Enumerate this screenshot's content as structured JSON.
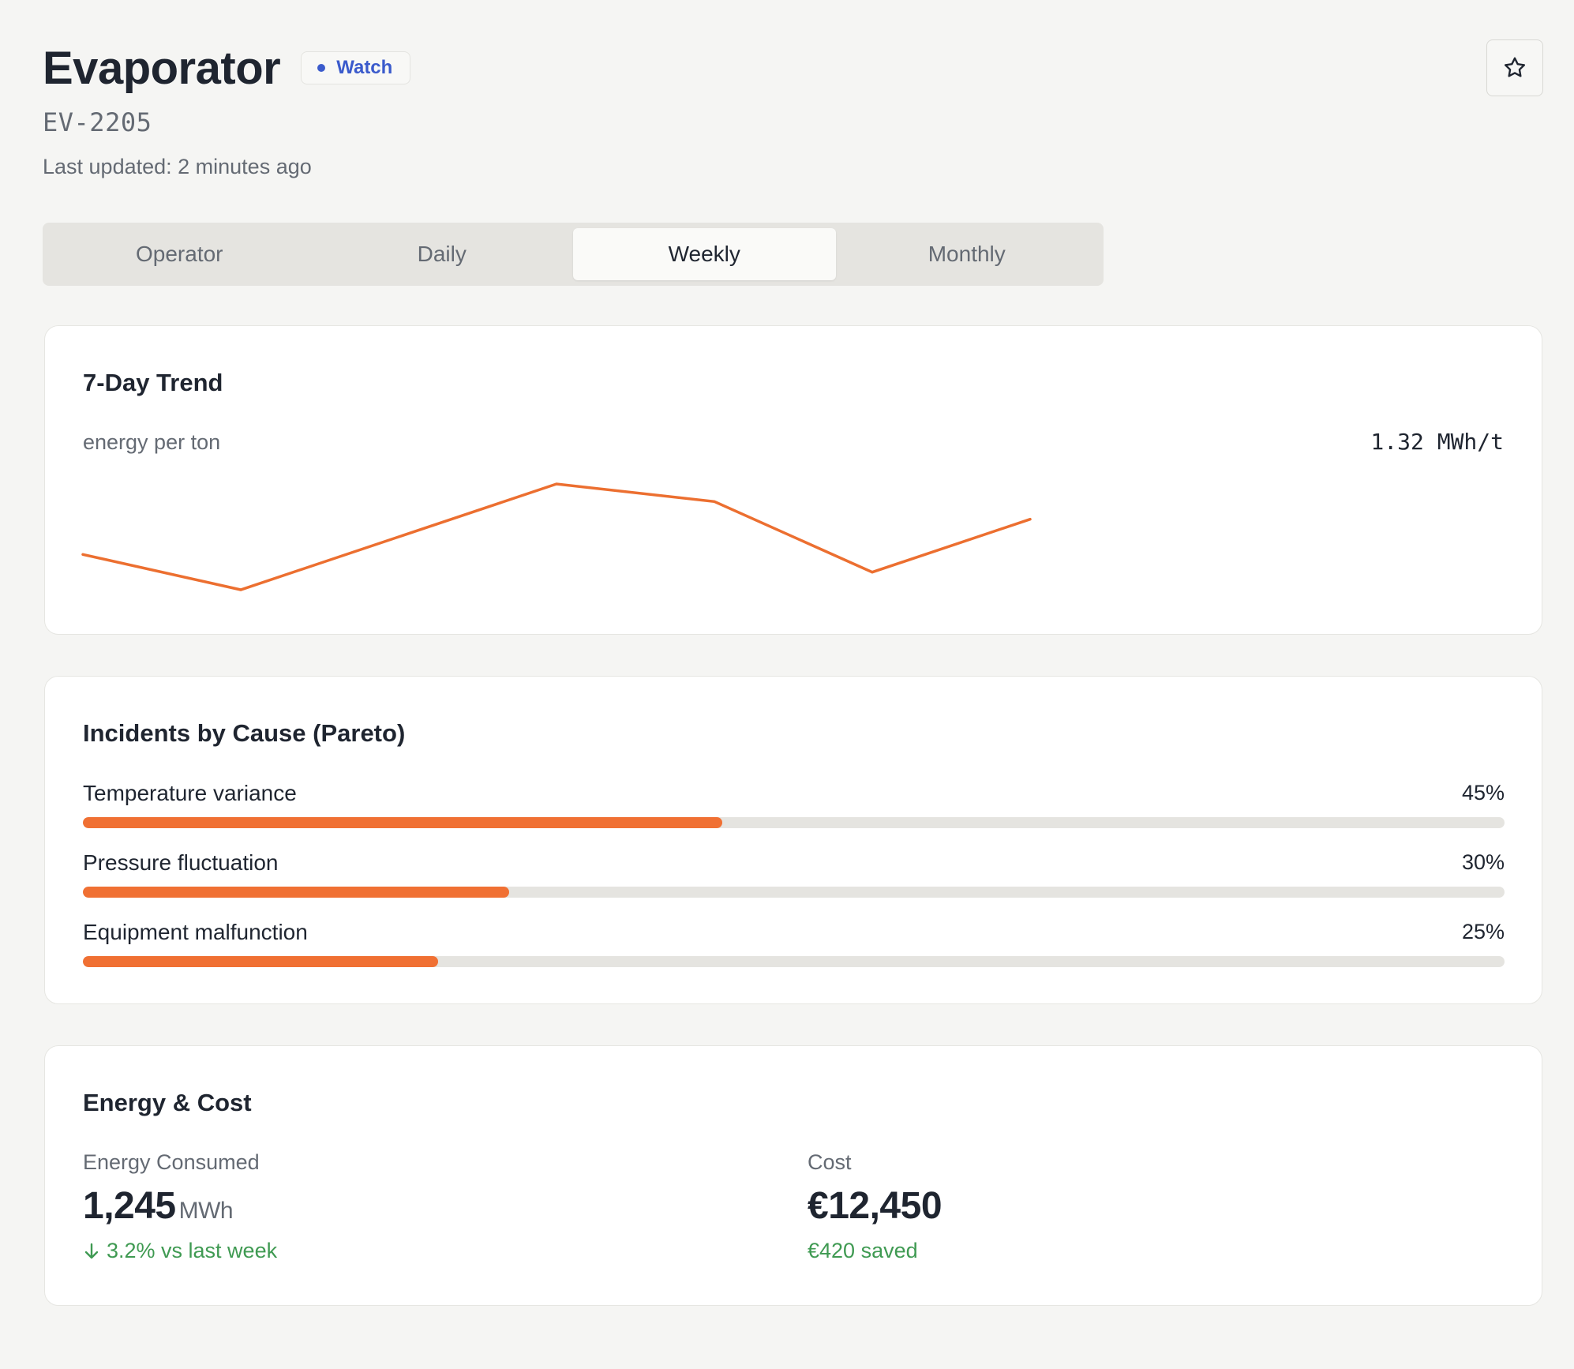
{
  "header": {
    "title": "Evaporator",
    "badge": "Watch",
    "code": "EV-2205",
    "last_updated": "Last updated: 2 minutes ago",
    "star_icon": "star-icon"
  },
  "tabs": [
    {
      "label": "Operator",
      "active": false
    },
    {
      "label": "Daily",
      "active": false
    },
    {
      "label": "Weekly",
      "active": true
    },
    {
      "label": "Monthly",
      "active": false
    }
  ],
  "trend": {
    "title": "7-Day Trend",
    "subtitle": "energy per ton",
    "value": "1.32 MWh/t",
    "line_color": "#ec6f30"
  },
  "chart_data": {
    "type": "line",
    "title": "7-Day Trend",
    "ylabel": "energy per ton",
    "x": [
      1,
      2,
      3,
      4,
      5,
      6,
      7
    ],
    "values": [
      0.4,
      0.0,
      0.6,
      1.2,
      1.0,
      0.2,
      0.8
    ],
    "ylim": [
      0,
      1.2
    ],
    "x_slots": 12,
    "color": "#ec6f30"
  },
  "pareto": {
    "title": "Incidents by Cause (Pareto)",
    "fill_color": "#f07033",
    "items": [
      {
        "label": "Temperature variance",
        "pct_label": "45%",
        "value": 45
      },
      {
        "label": "Pressure fluctuation",
        "pct_label": "30%",
        "value": 30
      },
      {
        "label": "Equipment malfunction",
        "pct_label": "25%",
        "value": 25
      }
    ]
  },
  "energy": {
    "title": "Energy & Cost",
    "consumed": {
      "label": "Energy Consumed",
      "value": "1,245",
      "unit": "MWh",
      "delta": "3.2% vs last week",
      "delta_icon": "arrow-down-icon"
    },
    "cost": {
      "label": "Cost",
      "value": "€12,450",
      "delta": "€420 saved"
    },
    "positive_color": "#3f9a52"
  }
}
